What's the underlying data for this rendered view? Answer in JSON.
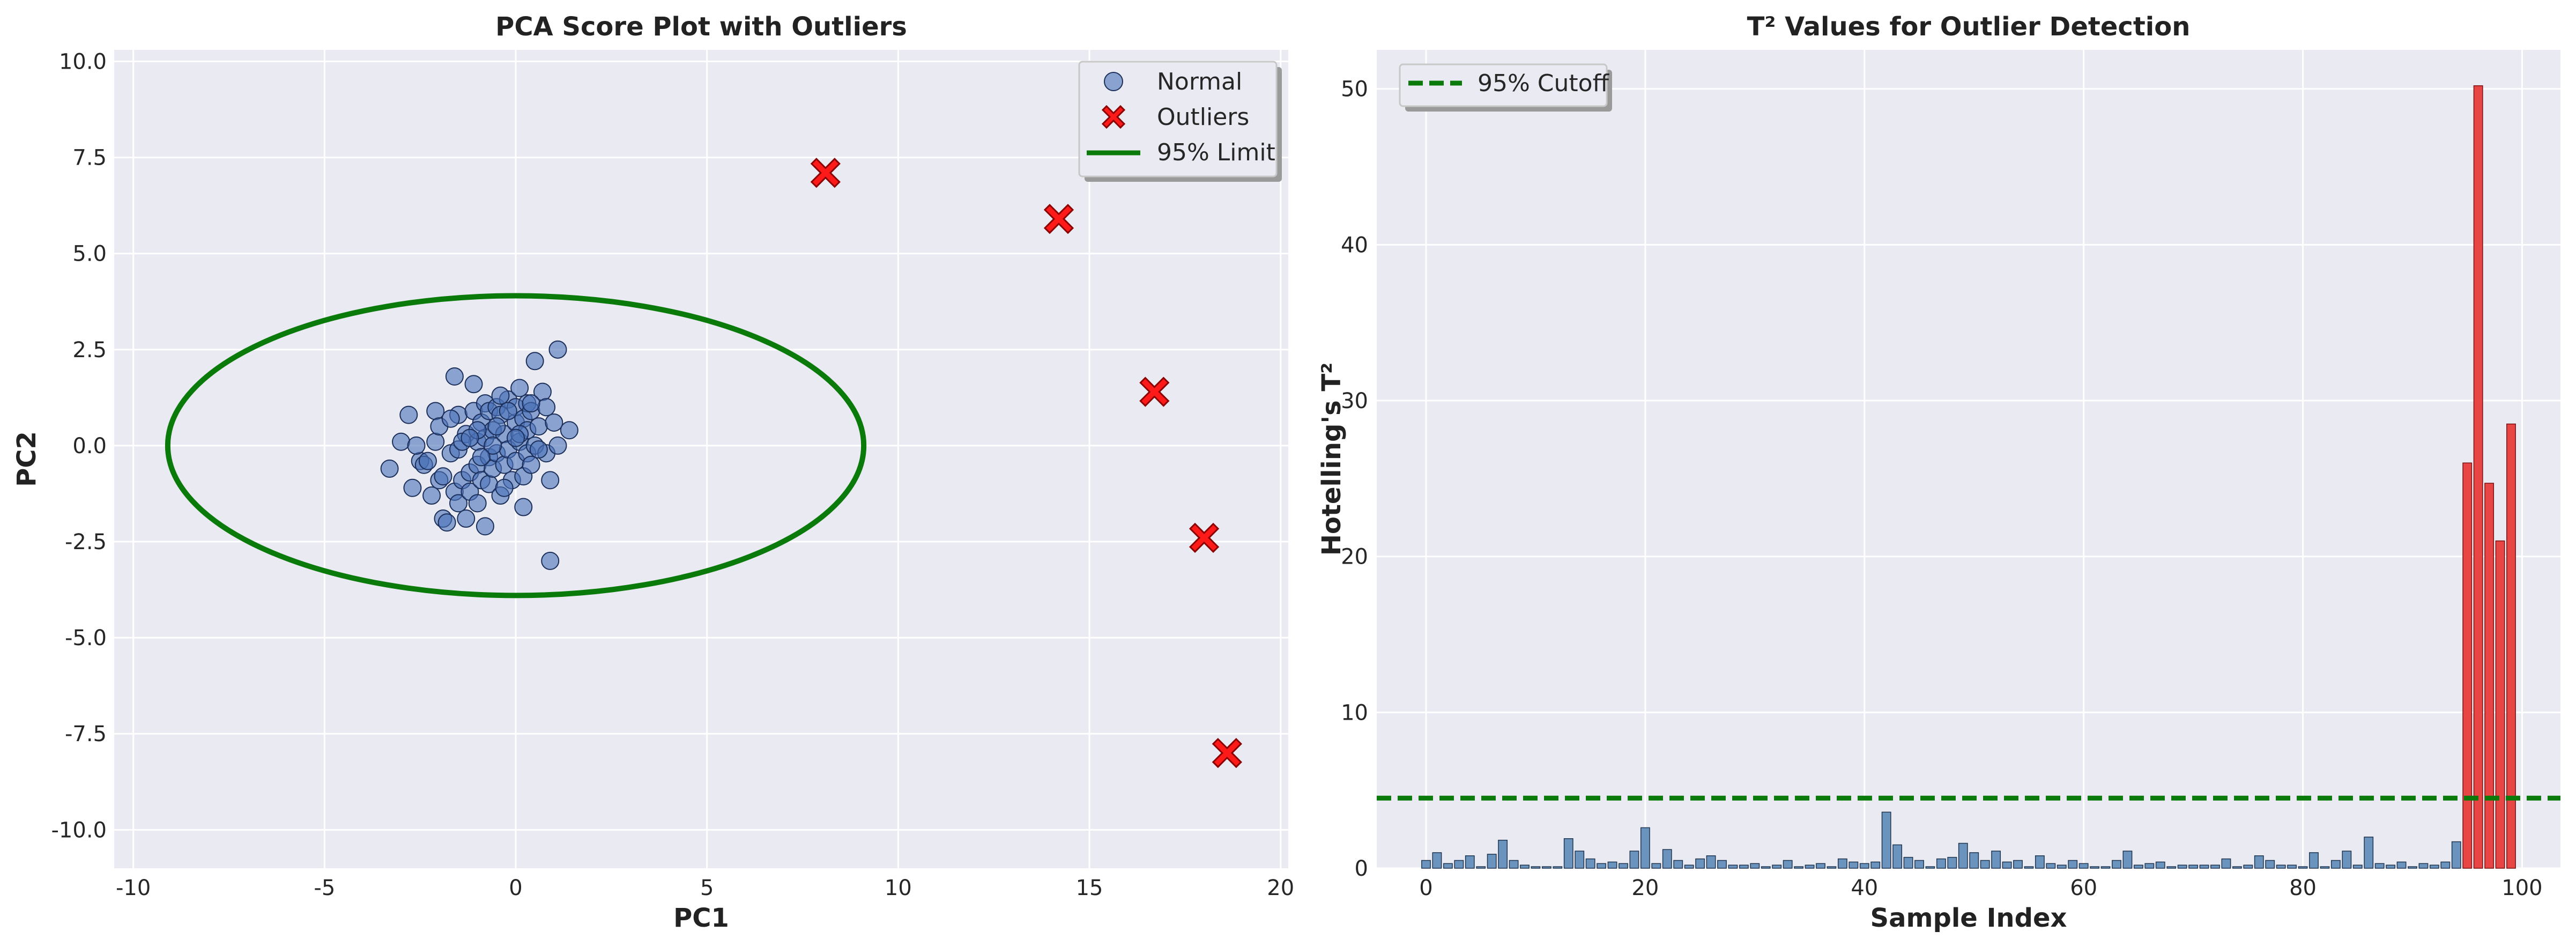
{
  "chart_data": [
    {
      "type": "scatter",
      "title": "PCA Score Plot with Outliers",
      "xlabel": "PC1",
      "ylabel": "PC2",
      "xlim": [
        -10.5,
        20.2
      ],
      "ylim": [
        -11,
        10.3
      ],
      "xticks": [
        -10,
        -5,
        0,
        5,
        10,
        15,
        20
      ],
      "yticks": [
        -10.0,
        -7.5,
        -5.0,
        -2.5,
        0.0,
        2.5,
        5.0,
        7.5,
        10.0
      ],
      "grid": true,
      "legend_position": "top-right",
      "series": [
        {
          "name": "Normal",
          "color": "#4a72b8",
          "marker": "circle",
          "points": [
            [
              -3.3,
              -0.6
            ],
            [
              -3.0,
              0.1
            ],
            [
              -2.8,
              0.8
            ],
            [
              -2.7,
              -1.1
            ],
            [
              -2.5,
              -0.4
            ],
            [
              -2.4,
              -0.5
            ],
            [
              -2.2,
              -1.3
            ],
            [
              -2.1,
              0.9
            ],
            [
              -2.1,
              0.1
            ],
            [
              -2.0,
              -0.9
            ],
            [
              -2.0,
              0.5
            ],
            [
              -1.9,
              -1.9
            ],
            [
              -1.9,
              -0.8
            ],
            [
              -1.8,
              -2.0
            ],
            [
              -1.7,
              -0.2
            ],
            [
              -1.6,
              1.8
            ],
            [
              -1.6,
              -1.2
            ],
            [
              -1.5,
              -0.1
            ],
            [
              -1.5,
              -1.5
            ],
            [
              -1.5,
              0.8
            ],
            [
              -1.4,
              -0.9
            ],
            [
              -1.3,
              0.3
            ],
            [
              -1.3,
              -1.9
            ],
            [
              -1.2,
              -0.7
            ],
            [
              -1.2,
              -1.2
            ],
            [
              -1.1,
              1.6
            ],
            [
              -1.1,
              0.9
            ],
            [
              -1.0,
              0.1
            ],
            [
              -1.0,
              -0.5
            ],
            [
              -1.0,
              -1.5
            ],
            [
              -0.9,
              0.6
            ],
            [
              -0.9,
              -0.9
            ],
            [
              -0.8,
              1.1
            ],
            [
              -0.8,
              0.2
            ],
            [
              -0.8,
              -2.1
            ],
            [
              -0.7,
              -0.3
            ],
            [
              -0.7,
              0.9
            ],
            [
              -0.7,
              -1.0
            ],
            [
              -0.6,
              0.4
            ],
            [
              -0.6,
              -0.6
            ],
            [
              -0.5,
              1.0
            ],
            [
              -0.5,
              -0.2
            ],
            [
              -0.4,
              0.8
            ],
            [
              -0.4,
              -1.3
            ],
            [
              -0.3,
              0.3
            ],
            [
              -0.3,
              -0.5
            ],
            [
              -0.2,
              1.2
            ],
            [
              -0.2,
              -0.1
            ],
            [
              -0.1,
              -0.9
            ],
            [
              0.0,
              0.6
            ],
            [
              0.0,
              1.0
            ],
            [
              0.0,
              -0.4
            ],
            [
              0.1,
              1.5
            ],
            [
              0.1,
              0.1
            ],
            [
              0.2,
              -0.8
            ],
            [
              0.2,
              0.7
            ],
            [
              0.2,
              -1.6
            ],
            [
              0.3,
              0.4
            ],
            [
              0.3,
              -0.2
            ],
            [
              0.3,
              1.1
            ],
            [
              0.4,
              0.9
            ],
            [
              0.4,
              -0.5
            ],
            [
              0.5,
              2.2
            ],
            [
              0.5,
              0.0
            ],
            [
              0.6,
              0.5
            ],
            [
              0.7,
              1.4
            ],
            [
              0.8,
              -0.2
            ],
            [
              0.8,
              1.0
            ],
            [
              0.9,
              -0.9
            ],
            [
              0.9,
              -3.0
            ],
            [
              1.0,
              0.6
            ],
            [
              1.1,
              2.5
            ],
            [
              1.1,
              0.0
            ],
            [
              1.4,
              0.4
            ],
            [
              -0.6,
              0.0
            ],
            [
              -1.0,
              0.4
            ],
            [
              -0.3,
              -1.1
            ],
            [
              0.1,
              0.3
            ],
            [
              -1.4,
              0.1
            ],
            [
              -0.5,
              0.5
            ],
            [
              -2.3,
              -0.4
            ],
            [
              -1.7,
              0.7
            ],
            [
              -0.2,
              0.9
            ],
            [
              -0.9,
              -0.3
            ],
            [
              0.6,
              -0.1
            ],
            [
              -1.2,
              0.2
            ],
            [
              -0.4,
              1.3
            ],
            [
              0.0,
              0.2
            ],
            [
              -2.6,
              0.0
            ],
            [
              0.4,
              1.1
            ]
          ]
        },
        {
          "name": "Outliers",
          "color": "#ff1a1a",
          "marker": "X",
          "points": [
            [
              8.1,
              7.1
            ],
            [
              14.2,
              5.9
            ],
            [
              16.7,
              1.4
            ],
            [
              18.0,
              -2.4
            ],
            [
              18.6,
              -8.0
            ]
          ]
        },
        {
          "name": "95% Limit",
          "color": "#0a7a0a",
          "marker": "line",
          "ellipse": {
            "center": [
              0,
              0
            ],
            "semi_axis_x": 9.1,
            "semi_axis_y": 3.9
          }
        }
      ]
    },
    {
      "type": "bar",
      "title": "T² Values for Outlier Detection",
      "xlabel": "Sample Index",
      "ylabel": "Hotelling's T²",
      "xlim": [
        -4.5,
        103.5
      ],
      "ylim": [
        0,
        52.5
      ],
      "xticks": [
        0,
        20,
        40,
        60,
        80,
        100
      ],
      "yticks": [
        0,
        10,
        20,
        30,
        40,
        50
      ],
      "grid": true,
      "legend_position": "top-left",
      "normal_color": "#6a93bd",
      "outlier_color": "#e84545",
      "values": [
        0.5,
        1.0,
        0.3,
        0.5,
        0.8,
        0.1,
        0.9,
        1.8,
        0.5,
        0.2,
        0.1,
        0.1,
        0.1,
        1.9,
        1.1,
        0.6,
        0.3,
        0.4,
        0.3,
        1.1,
        2.6,
        0.3,
        1.2,
        0.5,
        0.2,
        0.6,
        0.8,
        0.5,
        0.2,
        0.2,
        0.3,
        0.1,
        0.2,
        0.5,
        0.1,
        0.2,
        0.3,
        0.1,
        0.6,
        0.4,
        0.3,
        0.4,
        3.6,
        1.5,
        0.7,
        0.5,
        0.1,
        0.6,
        0.7,
        1.6,
        1.0,
        0.5,
        1.1,
        0.4,
        0.5,
        0.1,
        0.8,
        0.3,
        0.2,
        0.5,
        0.3,
        0.1,
        0.1,
        0.5,
        1.1,
        0.2,
        0.3,
        0.4,
        0.1,
        0.2,
        0.2,
        0.2,
        0.2,
        0.6,
        0.1,
        0.2,
        0.8,
        0.5,
        0.2,
        0.2,
        0.1,
        1.0,
        0.1,
        0.5,
        1.1,
        0.2,
        2.0,
        0.3,
        0.2,
        0.4,
        0.1,
        0.3,
        0.2,
        0.4,
        1.7,
        26.0,
        50.2,
        24.7,
        21.0,
        28.5
      ],
      "outlier_start_index": 95,
      "cutoff": {
        "name": "95% Cutoff",
        "value": 4.5,
        "color": "#0a7a0a"
      }
    }
  ]
}
